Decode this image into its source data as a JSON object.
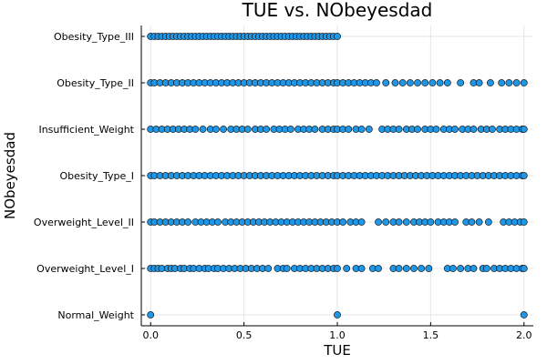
{
  "chart_data": {
    "type": "scatter",
    "title": "TUE vs. NObeyesdad",
    "xlabel": "TUE",
    "ylabel": "NObeyesdad",
    "xlim": [
      -0.05,
      2.05
    ],
    "xticks": [
      0.0,
      0.5,
      1.0,
      1.5,
      2.0
    ],
    "xtick_labels": [
      "0.0",
      "0.5",
      "1.0",
      "1.5",
      "2.0"
    ],
    "categories": [
      "Normal_Weight",
      "Overweight_Level_I",
      "Overweight_Level_II",
      "Obesity_Type_I",
      "Insufficient_Weight",
      "Obesity_Type_II",
      "Obesity_Type_III"
    ],
    "grid": true,
    "legend": false,
    "marker_color": "#1f97e6",
    "marker_stroke": "#000000",
    "series": [
      {
        "category": "Normal_Weight",
        "x": [
          0.0,
          1.0,
          2.0
        ]
      },
      {
        "category": "Overweight_Level_I",
        "x": [
          0.0,
          0.02,
          0.04,
          0.06,
          0.09,
          0.11,
          0.13,
          0.16,
          0.18,
          0.21,
          0.23,
          0.26,
          0.29,
          0.31,
          0.34,
          0.36,
          0.39,
          0.42,
          0.45,
          0.48,
          0.51,
          0.54,
          0.57,
          0.6,
          0.63,
          0.68,
          0.71,
          0.73,
          0.77,
          0.8,
          0.83,
          0.86,
          0.89,
          0.92,
          0.95,
          0.98,
          1.0,
          1.05,
          1.1,
          1.13,
          1.19,
          1.22,
          1.3,
          1.33,
          1.37,
          1.41,
          1.45,
          1.49,
          1.59,
          1.62,
          1.66,
          1.7,
          1.73,
          1.78,
          1.8,
          1.84,
          1.87,
          1.9,
          1.93,
          1.96,
          1.99,
          2.0
        ]
      },
      {
        "category": "Overweight_Level_II",
        "x": [
          0.0,
          0.02,
          0.05,
          0.08,
          0.11,
          0.14,
          0.17,
          0.2,
          0.24,
          0.27,
          0.3,
          0.33,
          0.36,
          0.4,
          0.43,
          0.46,
          0.49,
          0.52,
          0.55,
          0.58,
          0.61,
          0.64,
          0.67,
          0.7,
          0.73,
          0.76,
          0.79,
          0.82,
          0.85,
          0.88,
          0.91,
          0.94,
          0.97,
          1.0,
          1.03,
          1.07,
          1.1,
          1.13,
          1.22,
          1.26,
          1.3,
          1.33,
          1.37,
          1.41,
          1.44,
          1.47,
          1.5,
          1.54,
          1.57,
          1.6,
          1.63,
          1.69,
          1.72,
          1.76,
          1.81,
          1.89,
          1.92,
          1.95,
          1.98,
          2.0
        ]
      },
      {
        "category": "Obesity_Type_I",
        "x": [
          0.0,
          0.02,
          0.05,
          0.08,
          0.11,
          0.14,
          0.17,
          0.2,
          0.23,
          0.26,
          0.29,
          0.32,
          0.35,
          0.38,
          0.41,
          0.44,
          0.47,
          0.5,
          0.53,
          0.56,
          0.59,
          0.62,
          0.65,
          0.68,
          0.71,
          0.74,
          0.77,
          0.8,
          0.83,
          0.86,
          0.89,
          0.92,
          0.95,
          0.98,
          1.0,
          1.03,
          1.06,
          1.09,
          1.12,
          1.15,
          1.18,
          1.21,
          1.24,
          1.27,
          1.3,
          1.33,
          1.36,
          1.39,
          1.42,
          1.45,
          1.48,
          1.51,
          1.54,
          1.57,
          1.6,
          1.63,
          1.66,
          1.69,
          1.72,
          1.75,
          1.78,
          1.81,
          1.84,
          1.87,
          1.9,
          1.93,
          1.96,
          1.99,
          2.0
        ]
      },
      {
        "category": "Insufficient_Weight",
        "x": [
          0.0,
          0.03,
          0.06,
          0.09,
          0.12,
          0.15,
          0.18,
          0.21,
          0.24,
          0.28,
          0.32,
          0.35,
          0.39,
          0.43,
          0.46,
          0.49,
          0.52,
          0.56,
          0.59,
          0.62,
          0.66,
          0.69,
          0.72,
          0.75,
          0.79,
          0.82,
          0.85,
          0.88,
          0.92,
          0.95,
          0.98,
          1.0,
          1.03,
          1.06,
          1.1,
          1.13,
          1.17,
          1.24,
          1.27,
          1.3,
          1.33,
          1.37,
          1.4,
          1.43,
          1.47,
          1.5,
          1.53,
          1.57,
          1.6,
          1.63,
          1.67,
          1.7,
          1.73,
          1.77,
          1.8,
          1.83,
          1.87,
          1.9,
          1.93,
          1.96,
          1.99,
          2.0
        ]
      },
      {
        "category": "Obesity_Type_II",
        "x": [
          0.0,
          0.02,
          0.05,
          0.08,
          0.11,
          0.14,
          0.17,
          0.2,
          0.23,
          0.26,
          0.29,
          0.32,
          0.35,
          0.38,
          0.41,
          0.44,
          0.47,
          0.5,
          0.53,
          0.56,
          0.59,
          0.62,
          0.65,
          0.68,
          0.71,
          0.74,
          0.77,
          0.8,
          0.83,
          0.86,
          0.89,
          0.92,
          0.95,
          0.98,
          1.0,
          1.03,
          1.06,
          1.09,
          1.12,
          1.15,
          1.18,
          1.21,
          1.26,
          1.31,
          1.35,
          1.39,
          1.43,
          1.47,
          1.51,
          1.55,
          1.59,
          1.66,
          1.73,
          1.76,
          1.82,
          1.88,
          1.92,
          1.96,
          2.0
        ]
      },
      {
        "category": "Obesity_Type_III",
        "x": [
          0.0,
          0.02,
          0.04,
          0.06,
          0.08,
          0.1,
          0.12,
          0.14,
          0.16,
          0.18,
          0.2,
          0.22,
          0.24,
          0.26,
          0.28,
          0.3,
          0.32,
          0.34,
          0.36,
          0.38,
          0.4,
          0.42,
          0.44,
          0.46,
          0.48,
          0.5,
          0.52,
          0.54,
          0.56,
          0.58,
          0.6,
          0.62,
          0.64,
          0.66,
          0.68,
          0.7,
          0.72,
          0.74,
          0.76,
          0.78,
          0.8,
          0.82,
          0.84,
          0.86,
          0.88,
          0.9,
          0.92,
          0.94,
          0.96,
          0.98,
          1.0
        ]
      }
    ]
  }
}
